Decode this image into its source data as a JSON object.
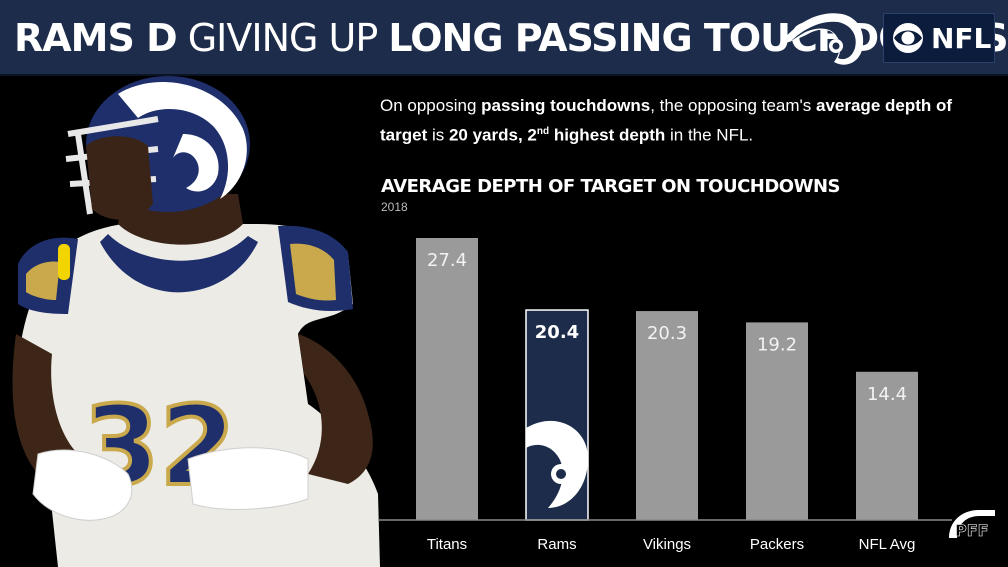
{
  "header": {
    "title_bold_1": "RAMS D",
    "title_light": "GIVING UP",
    "title_bold_2": "LONG PASSING TOUCHDOWNS",
    "partner_logo_text": "NFL"
  },
  "description": {
    "p1": "On opposing ",
    "b1": "passing touchdowns",
    "p2": ", the opposing team's ",
    "b2": "average depth of target",
    "p3": " is ",
    "b3": "20 yards, 2",
    "sup": "nd",
    "b4": " highest depth",
    "p4": " in the NFL."
  },
  "colors": {
    "header_bg": "#1c2c4a",
    "bar_default": "#9a9a9a",
    "bar_highlight": "#1c2c4a",
    "rams_gold": "#c9a94c"
  },
  "chart_data": {
    "type": "bar",
    "title": "AVERAGE DEPTH OF TARGET ON TOUCHDOWNS",
    "subtitle": "2018",
    "categories": [
      "Titans",
      "Rams",
      "Vikings",
      "Packers",
      "NFL Avg"
    ],
    "values": [
      27.4,
      20.4,
      20.3,
      19.2,
      14.4
    ],
    "value_labels": [
      "27.4",
      "20.4",
      "20.3",
      "19.2",
      "14.4"
    ],
    "highlight": "Rams",
    "ylim": [
      0,
      27.4
    ],
    "grid": false
  },
  "icons": {
    "team_logo": "rams-horn-icon",
    "network_logo": "cbs-eye-icon",
    "source_logo": "pff-logo-icon"
  }
}
